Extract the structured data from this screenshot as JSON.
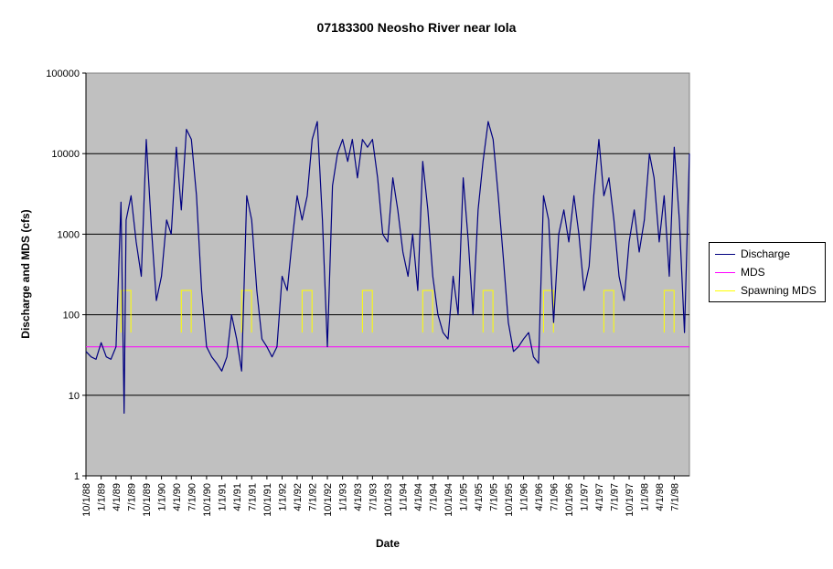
{
  "chart_data": {
    "type": "line",
    "title": "07183300 Neosho River near Iola",
    "xlabel": "Date",
    "ylabel": "Discharge and MDS (cfs)",
    "y_scale": "log",
    "ylim": [
      1,
      100000
    ],
    "y_ticks": [
      "1",
      "10",
      "100",
      "1000",
      "10000",
      "100000"
    ],
    "x_range": [
      "1988-10-01",
      "1998-10-01"
    ],
    "x_tick_labels": [
      "10/1/88",
      "1/1/89",
      "4/1/89",
      "7/1/89",
      "10/1/89",
      "1/1/90",
      "4/1/90",
      "7/1/90",
      "10/1/90",
      "1/1/91",
      "4/1/91",
      "7/1/91",
      "10/1/91",
      "1/1/92",
      "4/1/92",
      "7/1/92",
      "10/1/92",
      "1/1/93",
      "4/1/93",
      "7/1/93",
      "10/1/93",
      "1/1/94",
      "4/1/94",
      "7/1/94",
      "10/1/94",
      "1/1/95",
      "4/1/95",
      "7/1/95",
      "10/1/95",
      "1/1/96",
      "4/1/96",
      "7/1/96",
      "10/1/96",
      "1/1/97",
      "4/1/97",
      "7/1/97",
      "10/1/97",
      "1/1/98",
      "4/1/98",
      "7/1/98"
    ],
    "plot_background": "#c0c0c0",
    "grid": "horizontal major",
    "legend_position": "right",
    "series": [
      {
        "name": "Discharge",
        "color": "#000080",
        "points": [
          [
            "1988-10-01",
            35
          ],
          [
            "1988-11-01",
            30
          ],
          [
            "1988-12-01",
            28
          ],
          [
            "1989-01-01",
            45
          ],
          [
            "1989-02-01",
            30
          ],
          [
            "1989-03-01",
            28
          ],
          [
            "1989-04-01",
            40
          ],
          [
            "1989-05-01",
            2500
          ],
          [
            "1989-05-20",
            6
          ],
          [
            "1989-06-01",
            1500
          ],
          [
            "1989-07-01",
            3000
          ],
          [
            "1989-08-01",
            800
          ],
          [
            "1989-09-01",
            300
          ],
          [
            "1989-10-01",
            15000
          ],
          [
            "1989-11-01",
            1200
          ],
          [
            "1989-12-01",
            150
          ],
          [
            "1990-01-01",
            300
          ],
          [
            "1990-02-01",
            1500
          ],
          [
            "1990-03-01",
            1000
          ],
          [
            "1990-04-01",
            12000
          ],
          [
            "1990-05-01",
            2000
          ],
          [
            "1990-06-01",
            20000
          ],
          [
            "1990-07-01",
            15000
          ],
          [
            "1990-08-01",
            3000
          ],
          [
            "1990-09-01",
            200
          ],
          [
            "1990-10-01",
            40
          ],
          [
            "1990-11-01",
            30
          ],
          [
            "1990-12-01",
            25
          ],
          [
            "1991-01-01",
            20
          ],
          [
            "1991-02-01",
            30
          ],
          [
            "1991-03-01",
            100
          ],
          [
            "1991-04-01",
            50
          ],
          [
            "1991-05-01",
            20
          ],
          [
            "1991-06-01",
            3000
          ],
          [
            "1991-07-01",
            1500
          ],
          [
            "1991-08-01",
            200
          ],
          [
            "1991-09-01",
            50
          ],
          [
            "1991-10-01",
            40
          ],
          [
            "1991-11-01",
            30
          ],
          [
            "1991-12-01",
            40
          ],
          [
            "1992-01-01",
            300
          ],
          [
            "1992-02-01",
            200
          ],
          [
            "1992-03-01",
            800
          ],
          [
            "1992-04-01",
            3000
          ],
          [
            "1992-05-01",
            1500
          ],
          [
            "1992-06-01",
            3000
          ],
          [
            "1992-07-01",
            15000
          ],
          [
            "1992-08-01",
            25000
          ],
          [
            "1992-09-01",
            1500
          ],
          [
            "1992-10-01",
            40
          ],
          [
            "1992-11-01",
            4000
          ],
          [
            "1992-12-01",
            10000
          ],
          [
            "1993-01-01",
            15000
          ],
          [
            "1993-02-01",
            8000
          ],
          [
            "1993-03-01",
            15000
          ],
          [
            "1993-04-01",
            5000
          ],
          [
            "1993-05-01",
            15000
          ],
          [
            "1993-06-01",
            12000
          ],
          [
            "1993-07-01",
            15000
          ],
          [
            "1993-08-01",
            5000
          ],
          [
            "1993-09-01",
            1000
          ],
          [
            "1993-10-01",
            800
          ],
          [
            "1993-11-01",
            5000
          ],
          [
            "1993-12-01",
            2000
          ],
          [
            "1994-01-01",
            600
          ],
          [
            "1994-02-01",
            300
          ],
          [
            "1994-03-01",
            1000
          ],
          [
            "1994-04-01",
            200
          ],
          [
            "1994-05-01",
            8000
          ],
          [
            "1994-06-01",
            2000
          ],
          [
            "1994-07-01",
            300
          ],
          [
            "1994-08-01",
            100
          ],
          [
            "1994-09-01",
            60
          ],
          [
            "1994-10-01",
            50
          ],
          [
            "1994-11-01",
            300
          ],
          [
            "1994-12-01",
            100
          ],
          [
            "1995-01-01",
            5000
          ],
          [
            "1995-02-01",
            800
          ],
          [
            "1995-03-01",
            100
          ],
          [
            "1995-04-01",
            2000
          ],
          [
            "1995-05-01",
            8000
          ],
          [
            "1995-06-01",
            25000
          ],
          [
            "1995-07-01",
            15000
          ],
          [
            "1995-08-01",
            3000
          ],
          [
            "1995-09-01",
            500
          ],
          [
            "1995-10-01",
            80
          ],
          [
            "1995-11-01",
            35
          ],
          [
            "1995-12-01",
            40
          ],
          [
            "1996-01-01",
            50
          ],
          [
            "1996-02-01",
            60
          ],
          [
            "1996-03-01",
            30
          ],
          [
            "1996-04-01",
            25
          ],
          [
            "1996-05-01",
            3000
          ],
          [
            "1996-06-01",
            1500
          ],
          [
            "1996-07-01",
            80
          ],
          [
            "1996-08-01",
            1000
          ],
          [
            "1996-09-01",
            2000
          ],
          [
            "1996-10-01",
            800
          ],
          [
            "1996-11-01",
            3000
          ],
          [
            "1996-12-01",
            1000
          ],
          [
            "1997-01-01",
            200
          ],
          [
            "1997-02-01",
            400
          ],
          [
            "1997-03-01",
            3000
          ],
          [
            "1997-04-01",
            15000
          ],
          [
            "1997-05-01",
            3000
          ],
          [
            "1997-06-01",
            5000
          ],
          [
            "1997-07-01",
            1500
          ],
          [
            "1997-08-01",
            300
          ],
          [
            "1997-09-01",
            150
          ],
          [
            "1997-10-01",
            800
          ],
          [
            "1997-11-01",
            2000
          ],
          [
            "1997-12-01",
            600
          ],
          [
            "1998-01-01",
            1500
          ],
          [
            "1998-02-01",
            10000
          ],
          [
            "1998-03-01",
            5000
          ],
          [
            "1998-04-01",
            800
          ],
          [
            "1998-05-01",
            3000
          ],
          [
            "1998-06-01",
            300
          ],
          [
            "1998-07-01",
            12000
          ],
          [
            "1998-08-01",
            1500
          ],
          [
            "1998-09-01",
            60
          ],
          [
            "1998-10-01",
            10000
          ]
        ]
      },
      {
        "name": "MDS",
        "color": "#ff00ff",
        "points": [
          [
            "1988-10-01",
            40
          ],
          [
            "1998-10-01",
            40
          ]
        ]
      },
      {
        "name": "Spawning MDS",
        "color": "#ffff00",
        "periods": [
          {
            "start": "1989-05-01",
            "end": "1989-06-30",
            "value": 200,
            "edge_value": 60
          },
          {
            "start": "1990-05-01",
            "end": "1990-06-30",
            "value": 200,
            "edge_value": 60
          },
          {
            "start": "1991-05-01",
            "end": "1991-06-30",
            "value": 200,
            "edge_value": 60
          },
          {
            "start": "1992-05-01",
            "end": "1992-06-30",
            "value": 200,
            "edge_value": 60
          },
          {
            "start": "1993-05-01",
            "end": "1993-06-30",
            "value": 200,
            "edge_value": 60
          },
          {
            "start": "1994-05-01",
            "end": "1994-06-30",
            "value": 200,
            "edge_value": 60
          },
          {
            "start": "1995-05-01",
            "end": "1995-06-30",
            "value": 200,
            "edge_value": 60
          },
          {
            "start": "1996-05-01",
            "end": "1996-06-30",
            "value": 200,
            "edge_value": 60
          },
          {
            "start": "1997-05-01",
            "end": "1997-06-30",
            "value": 200,
            "edge_value": 60
          },
          {
            "start": "1998-05-01",
            "end": "1998-06-30",
            "value": 200,
            "edge_value": 60
          }
        ]
      }
    ]
  }
}
